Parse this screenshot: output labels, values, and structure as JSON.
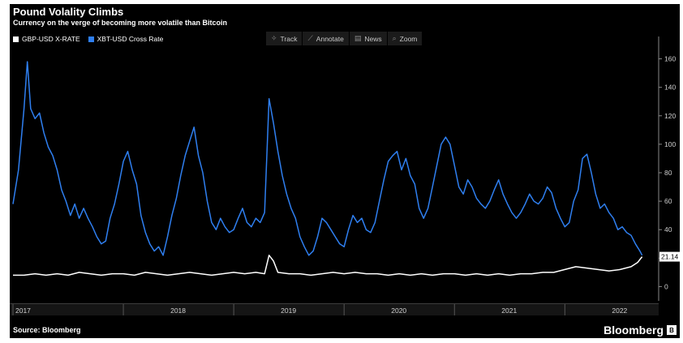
{
  "header": {
    "title": "Pound Volality Climbs",
    "subtitle": "Currency on the verge of becoming more volatile than Bitcoin"
  },
  "legend": [
    {
      "label": "GBP-USD X-RATE",
      "color": "#ffffff"
    },
    {
      "label": "XBT-USD Cross Rate",
      "color": "#2f7ff0"
    }
  ],
  "toolbar": [
    {
      "label": "Track",
      "icon": "track-icon",
      "glyph": "✧"
    },
    {
      "label": "Annotate",
      "icon": "annotate-icon",
      "glyph": "⟋"
    },
    {
      "label": "News",
      "icon": "news-icon",
      "glyph": "▤"
    },
    {
      "label": "Zoom",
      "icon": "zoom-icon",
      "glyph": "⌕"
    }
  ],
  "footer": {
    "source": "Source: Bloomberg",
    "brand": "Bloomberg",
    "brand_mark": "B"
  },
  "last_value_label": "21.14",
  "chart_data": {
    "type": "line",
    "title": "Pound Volality Climbs",
    "subtitle": "Currency on the verge of becoming more volatile than Bitcoin",
    "ylim": [
      -10,
      170
    ],
    "xlim": [
      2017.0,
      2022.85
    ],
    "y_ticks": [
      0,
      20,
      40,
      60,
      80,
      100,
      120,
      140,
      160
    ],
    "x_ticks": [
      {
        "label": "2017",
        "x": 2017.0
      },
      {
        "label": "2018",
        "x": 2018.0
      },
      {
        "label": "2019",
        "x": 2019.0
      },
      {
        "label": "2020",
        "x": 2020.0
      },
      {
        "label": "2021",
        "x": 2021.0
      },
      {
        "label": "2022",
        "x": 2022.0
      }
    ],
    "grid": false,
    "legend_position": "top-left",
    "series": [
      {
        "name": "XBT-USD Cross Rate",
        "color": "#2f7ff0",
        "points": [
          [
            2017.0,
            58
          ],
          [
            2017.05,
            82
          ],
          [
            2017.1,
            125
          ],
          [
            2017.13,
            158
          ],
          [
            2017.16,
            125
          ],
          [
            2017.2,
            118
          ],
          [
            2017.24,
            122
          ],
          [
            2017.28,
            108
          ],
          [
            2017.32,
            98
          ],
          [
            2017.36,
            92
          ],
          [
            2017.4,
            82
          ],
          [
            2017.44,
            68
          ],
          [
            2017.48,
            60
          ],
          [
            2017.52,
            50
          ],
          [
            2017.56,
            58
          ],
          [
            2017.6,
            48
          ],
          [
            2017.64,
            55
          ],
          [
            2017.68,
            48
          ],
          [
            2017.72,
            42
          ],
          [
            2017.76,
            35
          ],
          [
            2017.8,
            30
          ],
          [
            2017.84,
            32
          ],
          [
            2017.88,
            48
          ],
          [
            2017.92,
            58
          ],
          [
            2017.96,
            72
          ],
          [
            2018.0,
            88
          ],
          [
            2018.04,
            95
          ],
          [
            2018.08,
            82
          ],
          [
            2018.12,
            72
          ],
          [
            2018.16,
            50
          ],
          [
            2018.2,
            38
          ],
          [
            2018.24,
            30
          ],
          [
            2018.28,
            25
          ],
          [
            2018.32,
            28
          ],
          [
            2018.36,
            22
          ],
          [
            2018.4,
            35
          ],
          [
            2018.44,
            50
          ],
          [
            2018.48,
            62
          ],
          [
            2018.52,
            78
          ],
          [
            2018.56,
            92
          ],
          [
            2018.6,
            102
          ],
          [
            2018.64,
            112
          ],
          [
            2018.68,
            92
          ],
          [
            2018.72,
            80
          ],
          [
            2018.76,
            60
          ],
          [
            2018.8,
            45
          ],
          [
            2018.84,
            40
          ],
          [
            2018.88,
            48
          ],
          [
            2018.92,
            42
          ],
          [
            2018.96,
            38
          ],
          [
            2019.0,
            40
          ],
          [
            2019.04,
            48
          ],
          [
            2019.08,
            55
          ],
          [
            2019.12,
            45
          ],
          [
            2019.16,
            42
          ],
          [
            2019.2,
            48
          ],
          [
            2019.24,
            45
          ],
          [
            2019.28,
            52
          ],
          [
            2019.32,
            132
          ],
          [
            2019.36,
            115
          ],
          [
            2019.4,
            95
          ],
          [
            2019.44,
            78
          ],
          [
            2019.48,
            65
          ],
          [
            2019.52,
            55
          ],
          [
            2019.56,
            48
          ],
          [
            2019.6,
            35
          ],
          [
            2019.64,
            28
          ],
          [
            2019.68,
            22
          ],
          [
            2019.72,
            25
          ],
          [
            2019.76,
            35
          ],
          [
            2019.8,
            48
          ],
          [
            2019.84,
            45
          ],
          [
            2019.88,
            40
          ],
          [
            2019.92,
            35
          ],
          [
            2019.96,
            30
          ],
          [
            2020.0,
            28
          ],
          [
            2020.04,
            40
          ],
          [
            2020.08,
            50
          ],
          [
            2020.12,
            45
          ],
          [
            2020.16,
            48
          ],
          [
            2020.2,
            40
          ],
          [
            2020.24,
            38
          ],
          [
            2020.28,
            45
          ],
          [
            2020.32,
            60
          ],
          [
            2020.36,
            75
          ],
          [
            2020.4,
            88
          ],
          [
            2020.44,
            92
          ],
          [
            2020.48,
            95
          ],
          [
            2020.52,
            82
          ],
          [
            2020.56,
            90
          ],
          [
            2020.6,
            78
          ],
          [
            2020.64,
            72
          ],
          [
            2020.68,
            55
          ],
          [
            2020.72,
            48
          ],
          [
            2020.76,
            55
          ],
          [
            2020.8,
            70
          ],
          [
            2020.84,
            85
          ],
          [
            2020.88,
            100
          ],
          [
            2020.92,
            105
          ],
          [
            2020.96,
            100
          ],
          [
            2021.0,
            85
          ],
          [
            2021.04,
            70
          ],
          [
            2021.08,
            65
          ],
          [
            2021.12,
            75
          ],
          [
            2021.16,
            70
          ],
          [
            2021.2,
            62
          ],
          [
            2021.24,
            58
          ],
          [
            2021.28,
            55
          ],
          [
            2021.32,
            60
          ],
          [
            2021.36,
            68
          ],
          [
            2021.4,
            75
          ],
          [
            2021.44,
            65
          ],
          [
            2021.48,
            58
          ],
          [
            2021.52,
            52
          ],
          [
            2021.56,
            48
          ],
          [
            2021.6,
            52
          ],
          [
            2021.64,
            58
          ],
          [
            2021.68,
            65
          ],
          [
            2021.72,
            60
          ],
          [
            2021.76,
            58
          ],
          [
            2021.8,
            62
          ],
          [
            2021.84,
            70
          ],
          [
            2021.88,
            66
          ],
          [
            2021.92,
            55
          ],
          [
            2021.96,
            48
          ],
          [
            2022.0,
            42
          ],
          [
            2022.04,
            45
          ],
          [
            2022.08,
            60
          ],
          [
            2022.12,
            68
          ],
          [
            2022.16,
            90
          ],
          [
            2022.2,
            93
          ],
          [
            2022.24,
            80
          ],
          [
            2022.28,
            65
          ],
          [
            2022.32,
            55
          ],
          [
            2022.36,
            58
          ],
          [
            2022.4,
            52
          ],
          [
            2022.44,
            48
          ],
          [
            2022.48,
            40
          ],
          [
            2022.52,
            42
          ],
          [
            2022.56,
            38
          ],
          [
            2022.6,
            36
          ],
          [
            2022.64,
            30
          ],
          [
            2022.68,
            25
          ],
          [
            2022.7,
            22
          ]
        ]
      },
      {
        "name": "GBP-USD X-RATE",
        "color": "#ffffff",
        "points": [
          [
            2017.0,
            8
          ],
          [
            2017.1,
            8
          ],
          [
            2017.2,
            9
          ],
          [
            2017.3,
            8
          ],
          [
            2017.4,
            9
          ],
          [
            2017.5,
            8
          ],
          [
            2017.6,
            10
          ],
          [
            2017.7,
            9
          ],
          [
            2017.8,
            8
          ],
          [
            2017.9,
            9
          ],
          [
            2018.0,
            9
          ],
          [
            2018.1,
            8
          ],
          [
            2018.2,
            10
          ],
          [
            2018.3,
            9
          ],
          [
            2018.4,
            8
          ],
          [
            2018.5,
            9
          ],
          [
            2018.6,
            10
          ],
          [
            2018.7,
            9
          ],
          [
            2018.8,
            8
          ],
          [
            2018.9,
            9
          ],
          [
            2019.0,
            10
          ],
          [
            2019.1,
            9
          ],
          [
            2019.2,
            10
          ],
          [
            2019.28,
            9
          ],
          [
            2019.32,
            22
          ],
          [
            2019.36,
            18
          ],
          [
            2019.4,
            10
          ],
          [
            2019.5,
            9
          ],
          [
            2019.6,
            9
          ],
          [
            2019.7,
            8
          ],
          [
            2019.8,
            9
          ],
          [
            2019.9,
            10
          ],
          [
            2020.0,
            9
          ],
          [
            2020.1,
            10
          ],
          [
            2020.2,
            9
          ],
          [
            2020.3,
            9
          ],
          [
            2020.4,
            8
          ],
          [
            2020.5,
            9
          ],
          [
            2020.6,
            8
          ],
          [
            2020.7,
            9
          ],
          [
            2020.8,
            8
          ],
          [
            2020.9,
            9
          ],
          [
            2021.0,
            9
          ],
          [
            2021.1,
            8
          ],
          [
            2021.2,
            9
          ],
          [
            2021.3,
            8
          ],
          [
            2021.4,
            9
          ],
          [
            2021.5,
            8
          ],
          [
            2021.6,
            9
          ],
          [
            2021.7,
            9
          ],
          [
            2021.8,
            10
          ],
          [
            2021.9,
            10
          ],
          [
            2022.0,
            12
          ],
          [
            2022.1,
            14
          ],
          [
            2022.2,
            13
          ],
          [
            2022.3,
            12
          ],
          [
            2022.4,
            11
          ],
          [
            2022.5,
            12
          ],
          [
            2022.6,
            14
          ],
          [
            2022.66,
            17
          ],
          [
            2022.7,
            21
          ]
        ]
      }
    ]
  }
}
